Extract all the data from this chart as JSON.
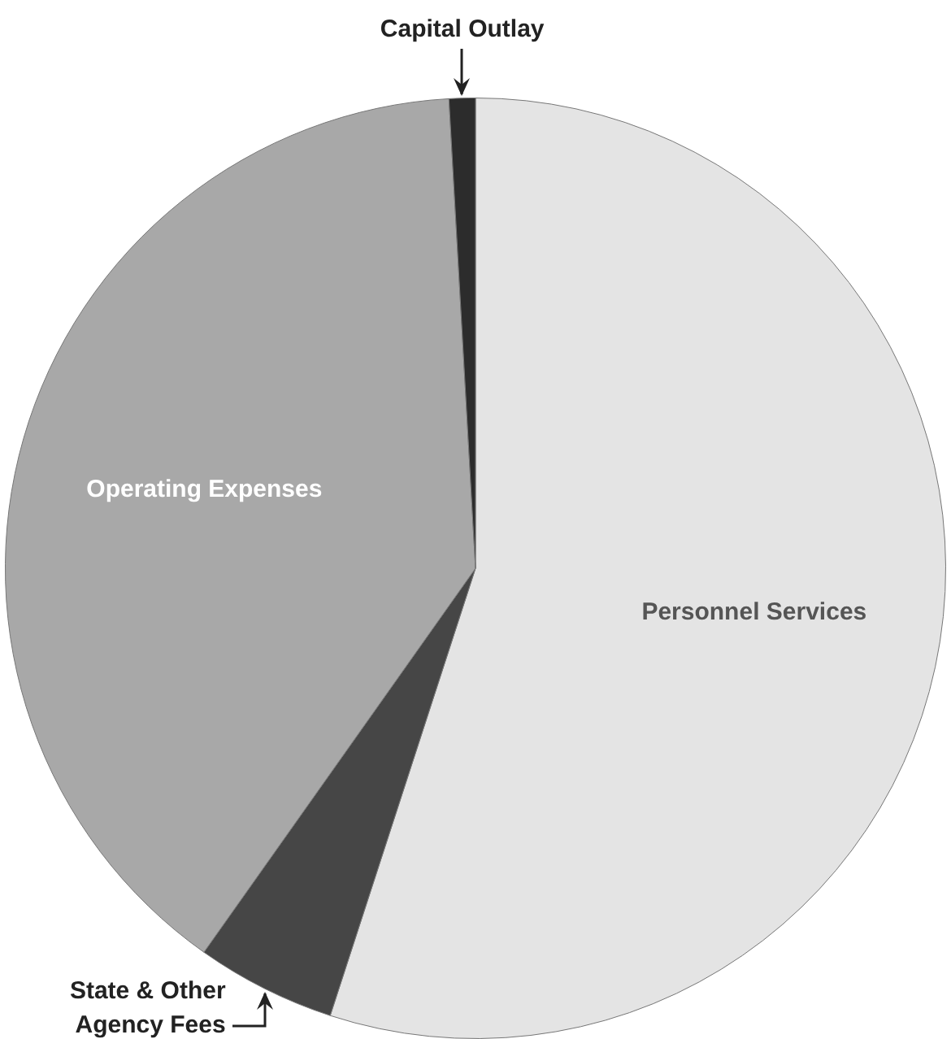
{
  "chart_data": {
    "type": "pie",
    "categories": [
      "Personnel Services",
      "State & Other Agency Fees",
      "Operating Expenses",
      "Capital Outlay"
    ],
    "values": [
      55,
      4.8,
      39.3,
      0.9
    ],
    "colors": [
      "#e4e4e4",
      "#464646",
      "#a8a8a8",
      "#2c2c2c"
    ]
  }
}
